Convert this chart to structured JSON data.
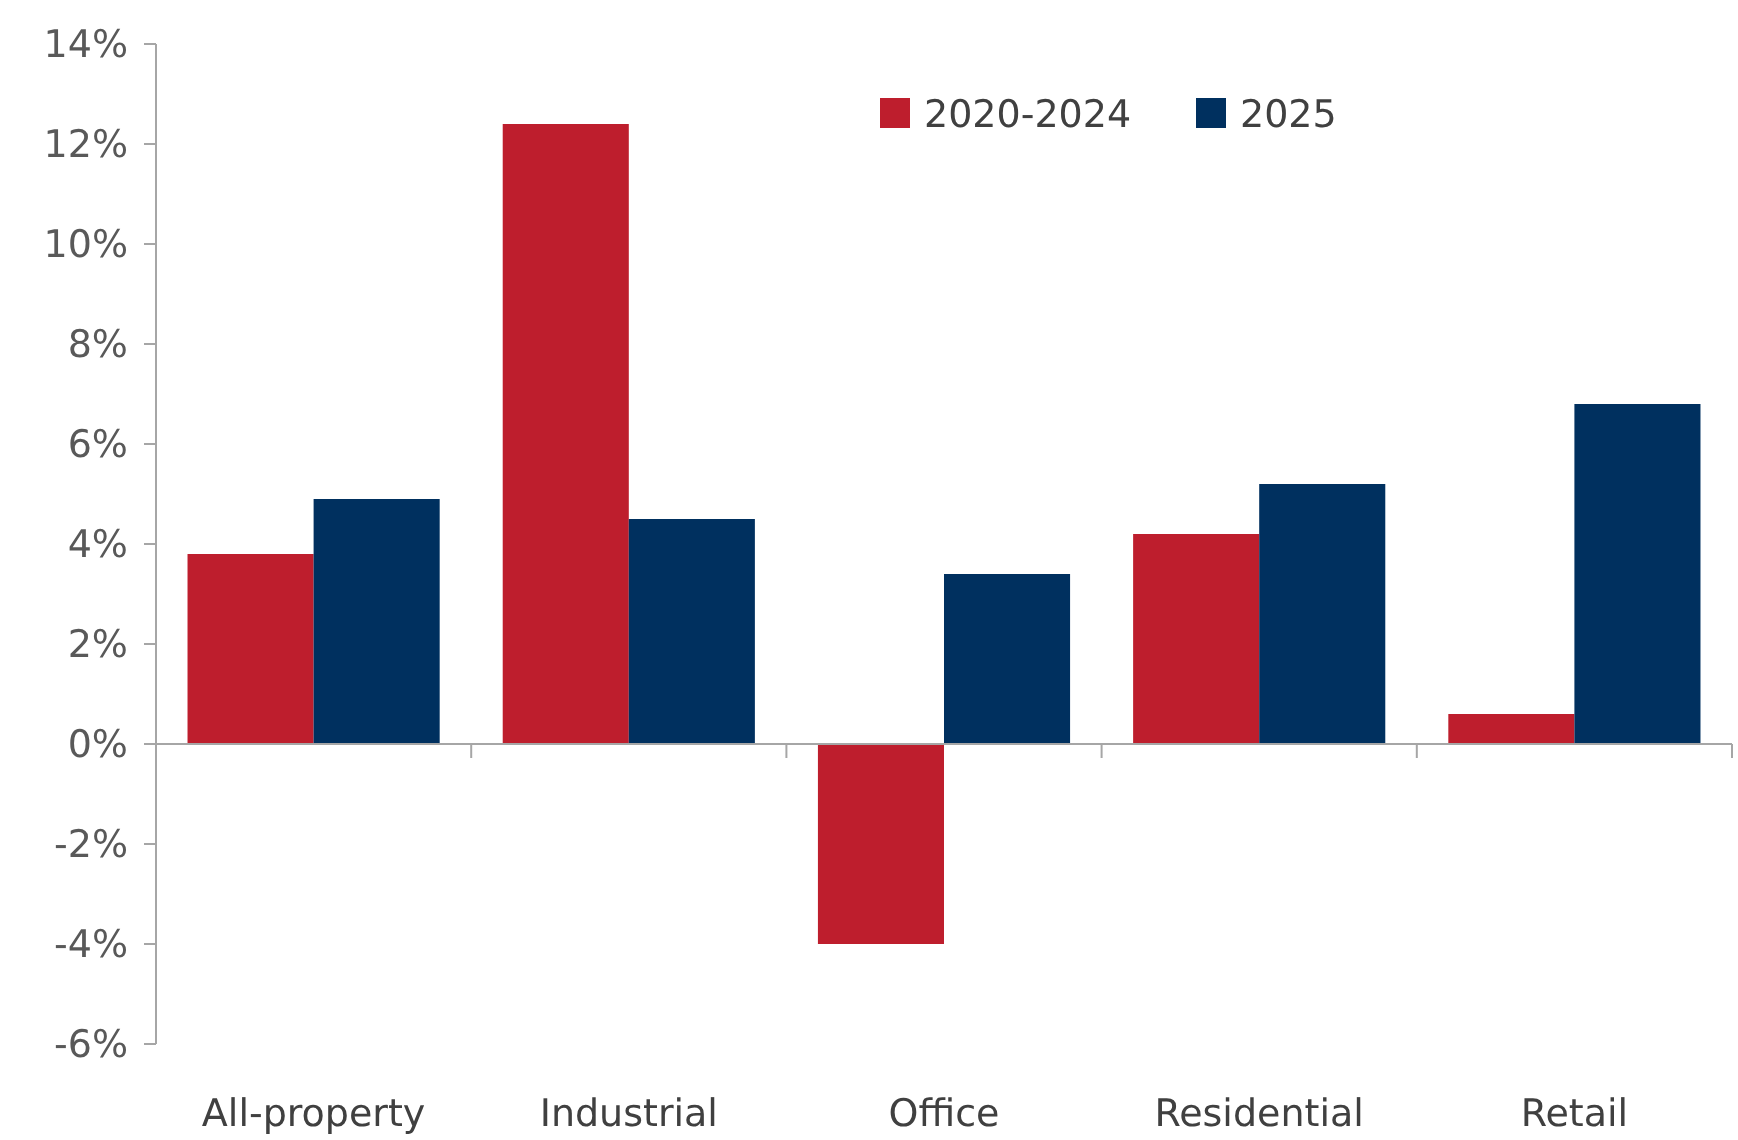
{
  "chart_data": {
    "type": "bar",
    "categories": [
      "All-property",
      "Industrial",
      "Office",
      "Residential",
      "Retail"
    ],
    "series": [
      {
        "name": "2020-2024",
        "color": "#be1e2d",
        "values": [
          3.8,
          12.4,
          -4.0,
          4.2,
          0.6
        ]
      },
      {
        "name": "2025",
        "color": "#00305f",
        "values": [
          4.9,
          4.5,
          3.4,
          5.2,
          6.8
        ]
      }
    ],
    "ylim": [
      -6,
      14
    ],
    "yticks": [
      {
        "value": -6,
        "label": "-6%"
      },
      {
        "value": -4,
        "label": "-4%"
      },
      {
        "value": -2,
        "label": "-2%"
      },
      {
        "value": 0,
        "label": "0%"
      },
      {
        "value": 2,
        "label": "2%"
      },
      {
        "value": 4,
        "label": "4%"
      },
      {
        "value": 6,
        "label": "6%"
      },
      {
        "value": 8,
        "label": "8%"
      },
      {
        "value": 10,
        "label": "10%"
      },
      {
        "value": 12,
        "label": "12%"
      },
      {
        "value": 14,
        "label": "14%"
      }
    ],
    "legend": "top right"
  }
}
